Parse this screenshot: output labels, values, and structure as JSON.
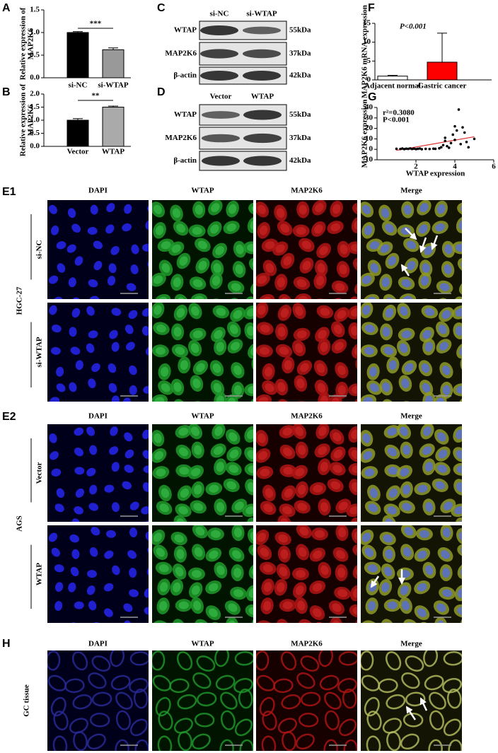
{
  "chart_data": [
    {
      "type": "bar",
      "panel": "A",
      "ylabel": [
        "Relative expression of",
        "MAP2K6"
      ],
      "categories": [
        "si-NC",
        "si-WTAP"
      ],
      "values": [
        1.0,
        0.62
      ],
      "errors": [
        0.02,
        0.04
      ],
      "colors": [
        "#000000",
        "#999999"
      ],
      "ylim": [
        0,
        1.5
      ],
      "yticks": [
        {
          "value": 0,
          "label": "0.0"
        },
        0.5,
        {
          "value": 1,
          "label": "1.0"
        },
        1.5
      ],
      "annotation": "***"
    },
    {
      "type": "bar",
      "panel": "B",
      "ylabel": [
        "Relative expression of",
        "MAP2K6"
      ],
      "categories": [
        "Vector",
        "WTAP"
      ],
      "values": [
        1.0,
        1.5
      ],
      "errors": [
        0.06,
        0.04
      ],
      "colors": [
        "#000000",
        "#aaaaaa"
      ],
      "ylim": [
        0,
        2
      ],
      "yticks": [
        {
          "value": 0,
          "label": "0.0"
        },
        0.5,
        {
          "value": 1,
          "label": "1.0"
        },
        1.5,
        {
          "value": 2,
          "label": "2.0"
        }
      ],
      "annotation": "**"
    },
    {
      "type": "bar",
      "panel": "F",
      "ylabel": [
        "MAP2K6 mRNA expression"
      ],
      "categories": [
        "Adjacent normal",
        "Gastric cancer"
      ],
      "values": [
        1.0,
        4.7
      ],
      "errors": [
        0.2,
        7.7
      ],
      "colors": [
        "#ffffff",
        "#ff0000"
      ],
      "ylim": [
        0,
        15
      ],
      "yticks": [
        0,
        5,
        10,
        15
      ],
      "annotation": "P<0.001"
    },
    {
      "type": "scatter",
      "panel": "G",
      "xlabel": "WTAP expression",
      "ylabel": [
        "MAP2K6 expression"
      ],
      "color": "#000000",
      "x": [
        1.0,
        1.2,
        1.3,
        1.4,
        1.5,
        1.6,
        1.7,
        1.8,
        1.9,
        2.0,
        2.1,
        2.2,
        2.3,
        2.5,
        2.7,
        2.9,
        3.0,
        3.2,
        3.3,
        3.4,
        3.5,
        3.5,
        3.6,
        3.7,
        3.8,
        3.9,
        4.0,
        4.0,
        4.1,
        4.2,
        4.3,
        4.4,
        4.5,
        4.6,
        4.7,
        5.0
      ],
      "y": [
        0.5,
        0.3,
        0.8,
        0.2,
        0.6,
        0.4,
        0.9,
        0.3,
        0.7,
        0.2,
        0.5,
        0.8,
        0.1,
        0.4,
        0.3,
        0.6,
        0.5,
        1,
        2,
        4,
        11,
        8,
        3,
        1.5,
        6,
        14,
        22,
        9,
        18,
        38,
        5,
        21,
        16,
        7,
        2,
        10
      ],
      "trendline": {
        "x": [
          1,
          5
        ],
        "y": [
          -1,
          12
        ],
        "color": "#e03030"
      },
      "xlim": [
        0,
        6
      ],
      "xticks": [
        2,
        4,
        6
      ],
      "ylim": [
        -10,
        40
      ],
      "yticks": [
        -10,
        0,
        10,
        20,
        30,
        40
      ],
      "annotations": [
        "r²=0.3080",
        "P<0.001"
      ]
    }
  ],
  "blots": [
    {
      "panel": "C",
      "lanes": [
        "si-NC",
        "si-WTAP"
      ],
      "rows": [
        {
          "protein": "WTAP",
          "size": "55kDa"
        },
        {
          "protein": "MAP2K6",
          "size": "37kDa"
        },
        {
          "protein": "β-actin",
          "size": "42kDa"
        }
      ]
    },
    {
      "panel": "D",
      "lanes": [
        "Vector",
        "WTAP"
      ],
      "rows": [
        {
          "protein": "WTAP",
          "size": "55kDa"
        },
        {
          "protein": "MAP2K6",
          "size": "37kDa"
        },
        {
          "protein": "β-actin",
          "size": "42kDa"
        }
      ]
    }
  ],
  "microscopy": [
    {
      "panel": "E1",
      "channels": [
        "DAPI",
        "WTAP",
        "MAP2K6",
        "Merge"
      ],
      "cell_line": "HGC-27",
      "conditions": [
        "si-NC",
        "si-WTAP"
      ]
    },
    {
      "panel": "E2",
      "channels": [
        "DAPI",
        "WTAP",
        "MAP2K6",
        "Merge"
      ],
      "cell_line": "AGS",
      "conditions": [
        "Vector",
        "WTAP"
      ]
    },
    {
      "panel": "H",
      "channels": [
        "DAPI",
        "WTAP",
        "MAP2K6",
        "Merge"
      ],
      "conditions": [
        "GC tissue"
      ]
    }
  ],
  "channel_colors": [
    "#1f5fbf",
    "#2ea84a",
    "#e02020",
    "#e0a020"
  ]
}
